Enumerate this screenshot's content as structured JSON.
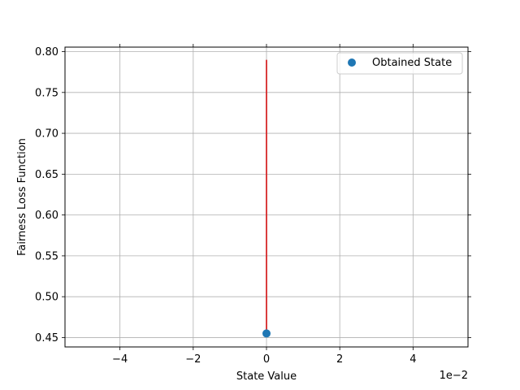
{
  "chart_data": {
    "type": "scatter",
    "title": "",
    "xlabel": "State Value",
    "ylabel": "Fairness Loss Function",
    "x_offset_text": "1e−2",
    "xlim": [
      -0.055,
      0.055
    ],
    "ylim": [
      0.4385,
      0.8055
    ],
    "x_ticks": [
      -0.04,
      -0.02,
      0,
      0.02,
      0.04
    ],
    "x_tick_labels": [
      "−4",
      "−2",
      "0",
      "2",
      "4"
    ],
    "y_ticks": [
      0.45,
      0.5,
      0.55,
      0.6,
      0.65,
      0.7,
      0.75,
      0.8
    ],
    "y_tick_labels": [
      "0.45",
      "0.50",
      "0.55",
      "0.60",
      "0.65",
      "0.70",
      "0.75",
      "0.80"
    ],
    "grid": true,
    "legend_position": "upper right",
    "series": [
      {
        "name": "Obtained State",
        "kind": "scatter",
        "color": "#1f77b4",
        "points": [
          {
            "x": 0,
            "y": 0.455
          }
        ]
      }
    ],
    "lines": [
      {
        "kind": "vertical-line",
        "color": "#d62728",
        "x": 0,
        "y_start": 0.455,
        "y_end": 0.79
      }
    ]
  }
}
